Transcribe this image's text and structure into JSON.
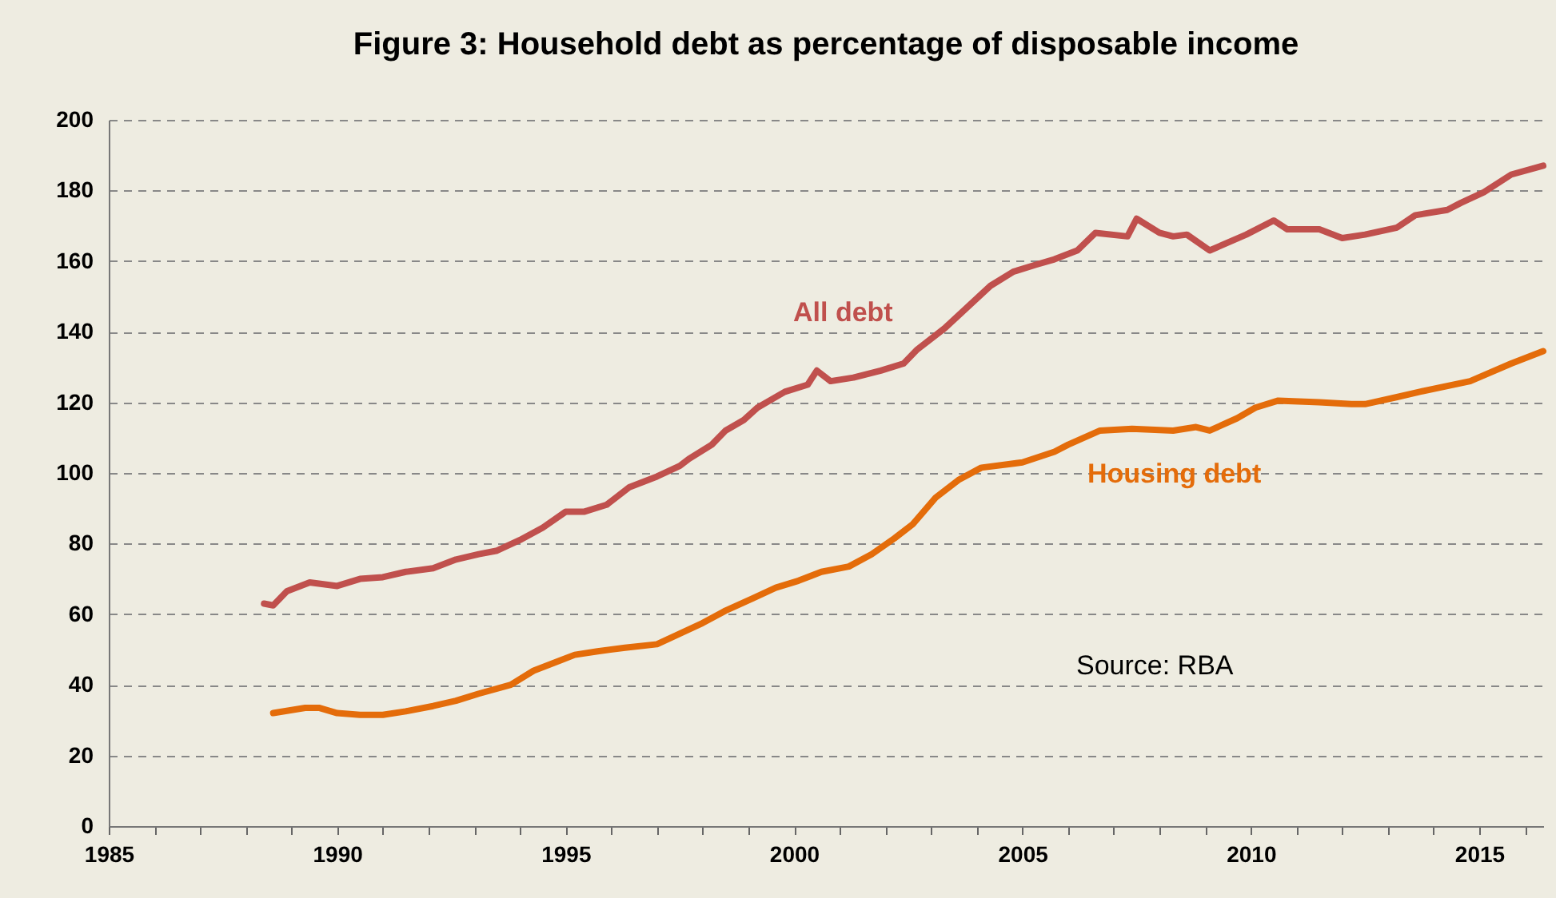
{
  "chart_data": {
    "type": "line",
    "title": "Figure 3: Household  debt as percentage of disposable  income",
    "annotations": [
      "Source:  RBA"
    ],
    "xlim": [
      1985,
      2016.4
    ],
    "xticks": [
      1985,
      {
        "value": 1986,
        "label": null
      },
      {
        "value": 1987,
        "label": null
      },
      {
        "value": 1988,
        "label": null
      },
      {
        "value": 1989,
        "label": null
      },
      1990,
      {
        "value": 1991,
        "label": null
      },
      {
        "value": 1992,
        "label": null
      },
      {
        "value": 1993,
        "label": null
      },
      {
        "value": 1994,
        "label": null
      },
      1995,
      {
        "value": 1996,
        "label": null
      },
      {
        "value": 1997,
        "label": null
      },
      {
        "value": 1998,
        "label": null
      },
      {
        "value": 1999,
        "label": null
      },
      2000,
      {
        "value": 2001,
        "label": null
      },
      {
        "value": 2002,
        "label": null
      },
      {
        "value": 2003,
        "label": null
      },
      {
        "value": 2004,
        "label": null
      },
      2005,
      {
        "value": 2006,
        "label": null
      },
      {
        "value": 2007,
        "label": null
      },
      {
        "value": 2008,
        "label": null
      },
      {
        "value": 2009,
        "label": null
      },
      2010,
      {
        "value": 2011,
        "label": null
      },
      {
        "value": 2012,
        "label": null
      },
      {
        "value": 2013,
        "label": null
      },
      {
        "value": 2014,
        "label": null
      },
      2015,
      {
        "value": 2016,
        "label": null
      }
    ],
    "ylim": [
      0,
      200
    ],
    "yticks": [
      0,
      20,
      40,
      60,
      80,
      100,
      120,
      140,
      160,
      180,
      200
    ],
    "grid": "y",
    "legend": false,
    "marker": "none",
    "line_style": "solid",
    "series": [
      {
        "name": "All debt",
        "color": "#c0504d",
        "x": [
          1988.4,
          1988.6,
          1988.9,
          1989.4,
          1990.0,
          1990.5,
          1991.0,
          1991.5,
          1992.1,
          1992.6,
          1993.1,
          1993.5,
          1994.0,
          1994.5,
          1995.0,
          1995.4,
          1995.9,
          1996.4,
          1997.0,
          1997.5,
          1997.7,
          1998.2,
          1998.5,
          1998.9,
          1999.2,
          1999.8,
          2000.3,
          2000.5,
          2000.8,
          2001.3,
          2001.9,
          2002.4,
          2002.7,
          2003.3,
          2003.8,
          2004.3,
          2004.8,
          2005.3,
          2005.7,
          2006.2,
          2006.6,
          2007.3,
          2007.5,
          2008.0,
          2008.3,
          2008.6,
          2009.1,
          2009.9,
          2010.5,
          2010.8,
          2011.5,
          2012.0,
          2012.5,
          2013.2,
          2013.6,
          2014.3,
          2014.6,
          2015.1,
          2015.7,
          2016.4
        ],
        "values": [
          63,
          62.5,
          66.5,
          69,
          68,
          70,
          70.5,
          72,
          73,
          75.5,
          77,
          78,
          81,
          84.5,
          89,
          89,
          91,
          96,
          99,
          102,
          104,
          108,
          112,
          115,
          118.5,
          123,
          125,
          129,
          126,
          127,
          129,
          131,
          135,
          141,
          147,
          153,
          157,
          159,
          160.5,
          163,
          168,
          167,
          172,
          168,
          167,
          167.5,
          163,
          167.5,
          171.5,
          169,
          169,
          166.5,
          167.5,
          169.5,
          173,
          174.5,
          176.5,
          179.5,
          184.5,
          187
        ]
      },
      {
        "name": "Housing debt",
        "color": "#e46c0a",
        "x": [
          1988.6,
          1989.3,
          1989.6,
          1990.0,
          1990.5,
          1991.0,
          1991.5,
          1992.1,
          1992.6,
          1993.1,
          1993.8,
          1994.3,
          1994.9,
          1995.2,
          1995.7,
          1996.3,
          1997.0,
          1997.5,
          1998.0,
          1998.5,
          1999.1,
          1999.6,
          2000.1,
          2000.6,
          2001.2,
          2001.7,
          2002.2,
          2002.6,
          2003.1,
          2003.6,
          2004.1,
          2004.7,
          2005.0,
          2005.7,
          2006.0,
          2006.7,
          2007.4,
          2008.3,
          2008.8,
          2009.1,
          2009.7,
          2010.1,
          2010.6,
          2011.5,
          2012.2,
          2012.5,
          2013.2,
          2013.7,
          2014.8,
          2015.7,
          2016.4
        ],
        "values": [
          32,
          33.5,
          33.5,
          32,
          31.5,
          31.5,
          32.5,
          34,
          35.5,
          37.5,
          40,
          44,
          47,
          48.5,
          49.5,
          50.5,
          51.5,
          54.5,
          57.5,
          61,
          64.5,
          67.5,
          69.5,
          72,
          73.5,
          77,
          81.5,
          85.5,
          93,
          98,
          101.5,
          102.5,
          103,
          106,
          108,
          112,
          112.5,
          112,
          113,
          112,
          115.5,
          118.5,
          120.5,
          120,
          119.5,
          119.5,
          121.5,
          123,
          126,
          131,
          134.5
        ]
      }
    ]
  }
}
